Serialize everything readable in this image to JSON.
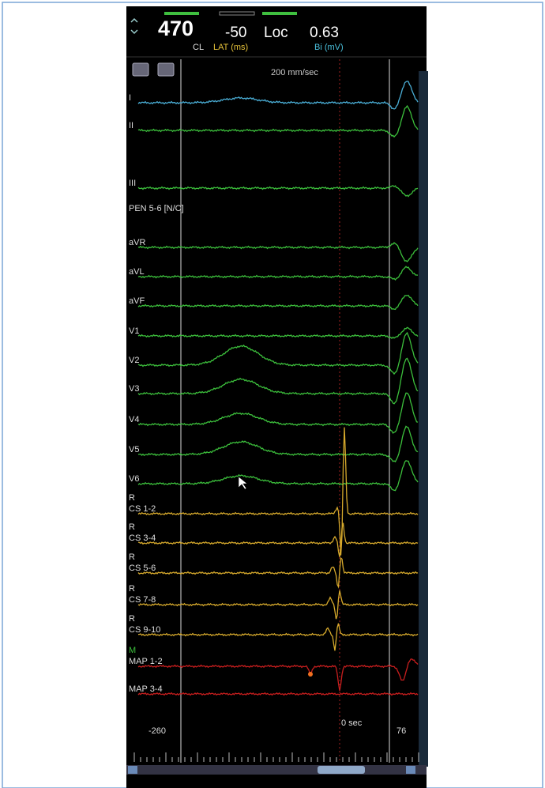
{
  "header": {
    "cycle_length": "470",
    "cycle_length_label": "CL",
    "lat": "-50",
    "lat_label": "LAT (ms)",
    "loc": "Loc",
    "bipolar": "0.63",
    "bipolar_label": "Bi (mV)"
  },
  "sweep_speed": "200 mm/sec",
  "channels": [
    {
      "label": "I",
      "color": "#4aaed6"
    },
    {
      "label": "II",
      "color": "#3cbf3c"
    },
    {
      "label": "III",
      "color": "#3cbf3c"
    },
    {
      "label": "PEN 5-6 [N/C]"
    },
    {
      "label": "aVR",
      "color": "#3cbf3c"
    },
    {
      "label": "aVL",
      "color": "#3cbf3c"
    },
    {
      "label": "aVF",
      "color": "#3cbf3c"
    },
    {
      "label": "V1",
      "color": "#3cbf3c"
    },
    {
      "label": "V2",
      "color": "#3cbf3c"
    },
    {
      "label": "V3",
      "color": "#3cbf3c"
    },
    {
      "label": "V4",
      "color": "#3cbf3c"
    },
    {
      "label": "V5",
      "color": "#3cbf3c"
    },
    {
      "label": "V6",
      "color": "#3cbf3c"
    },
    {
      "tag": "R",
      "label": "CS 1-2",
      "color": "#d6a92c"
    },
    {
      "tag": "R",
      "label": "CS 3-4",
      "color": "#d6a92c"
    },
    {
      "tag": "R",
      "label": "CS 5-6",
      "color": "#d6a92c"
    },
    {
      "tag": "R",
      "label": "CS 7-8",
      "color": "#d6a92c"
    },
    {
      "tag": "R",
      "label": "CS 9-10",
      "color": "#d6a92c"
    },
    {
      "tag": "M",
      "label": "MAP 1-2",
      "color": "#c81e1e"
    },
    {
      "label": "MAP 3-4",
      "color": "#c81e1e"
    }
  ],
  "time_axis": {
    "start": "-260",
    "zero": "0 sec",
    "end": "76"
  }
}
